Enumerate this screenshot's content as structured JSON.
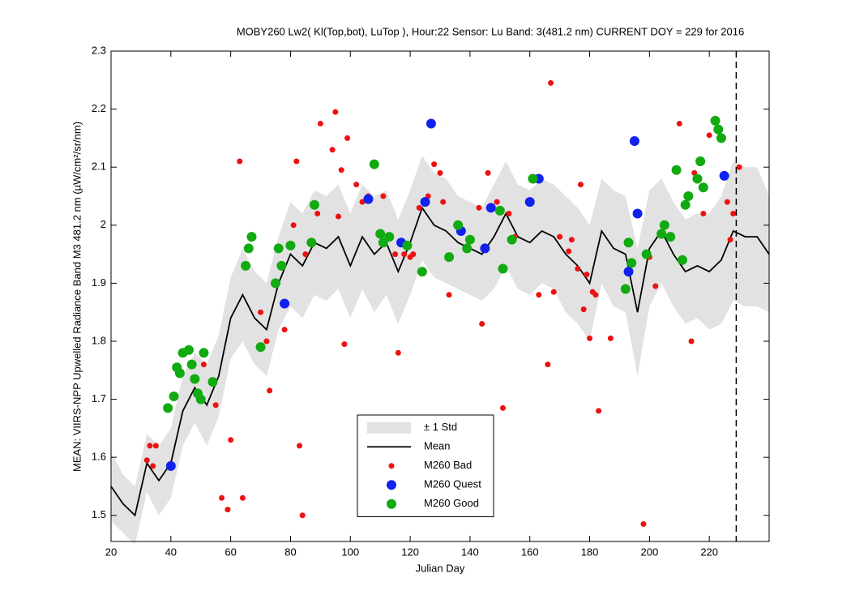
{
  "chart_data": {
    "type": "scatter",
    "title": "MOBY260   Lw2( Kl(Top,bot), LuTop ),   Hour:22 Sensor: Lu Band: 3(481.2 nm)   CURRENT DOY = 229 for 2016",
    "xlabel": "Julian Day",
    "ylabel": "MEAN: VIIRS-NPP Upwelled Radiance Band M3 481.2 nm (µW/cm²/sr/nm)",
    "xlim": [
      20,
      240
    ],
    "ylim": [
      1.455,
      2.3
    ],
    "xticks": [
      20,
      40,
      60,
      80,
      100,
      120,
      140,
      160,
      180,
      200,
      220
    ],
    "yticks": [
      1.5,
      1.6,
      1.7,
      1.8,
      1.9,
      2,
      2.1,
      2.2,
      2.3
    ],
    "vline": 229,
    "x": [
      20,
      24,
      28,
      32,
      36,
      40,
      44,
      48,
      52,
      56,
      60,
      64,
      68,
      72,
      76,
      80,
      84,
      88,
      92,
      96,
      100,
      104,
      108,
      112,
      116,
      120,
      124,
      128,
      132,
      136,
      140,
      144,
      148,
      152,
      156,
      160,
      164,
      168,
      172,
      176,
      180,
      184,
      188,
      192,
      196,
      200,
      204,
      208,
      212,
      216,
      220,
      224,
      228,
      232,
      236,
      240
    ],
    "mean": {
      "name": "Mean",
      "color": "#000000",
      "values": [
        1.55,
        1.52,
        1.5,
        1.59,
        1.56,
        1.59,
        1.68,
        1.72,
        1.69,
        1.74,
        1.84,
        1.88,
        1.84,
        1.82,
        1.9,
        1.95,
        1.93,
        1.97,
        1.96,
        1.98,
        1.93,
        1.98,
        1.95,
        1.97,
        1.92,
        1.97,
        2.03,
        2.0,
        1.99,
        1.97,
        1.96,
        1.95,
        1.98,
        2.02,
        1.98,
        1.97,
        1.99,
        1.98,
        1.95,
        1.93,
        1.9,
        1.99,
        1.96,
        1.95,
        1.85,
        1.96,
        1.99,
        1.95,
        1.92,
        1.93,
        1.92,
        1.94,
        1.99,
        1.98,
        1.98,
        1.95
      ]
    },
    "band": {
      "name": "± 1 Std",
      "color": "#e2e2e2",
      "values": [
        0.06,
        0.05,
        0.05,
        0.05,
        0.06,
        0.06,
        0.06,
        0.06,
        0.07,
        0.07,
        0.07,
        0.08,
        0.08,
        0.08,
        0.08,
        0.09,
        0.09,
        0.09,
        0.09,
        0.09,
        0.09,
        0.09,
        0.1,
        0.09,
        0.09,
        0.09,
        0.09,
        0.09,
        0.09,
        0.08,
        0.08,
        0.08,
        0.09,
        0.09,
        0.09,
        0.09,
        0.09,
        0.09,
        0.1,
        0.1,
        0.1,
        0.09,
        0.1,
        0.1,
        0.11,
        0.1,
        0.09,
        0.09,
        0.09,
        0.09,
        0.1,
        0.11,
        0.12,
        0.12,
        0.12,
        0.1
      ]
    },
    "legend": "lower center",
    "series": [
      {
        "name": "M260 Bad",
        "color": "#ee1111",
        "marker_size": 3.5,
        "x": [
          32,
          33,
          34,
          35,
          51,
          55,
          57,
          59,
          60,
          63,
          64,
          70,
          72,
          73,
          78,
          81,
          82,
          83,
          84,
          85,
          89,
          90,
          94,
          95,
          96,
          97,
          98,
          99,
          102,
          104,
          106,
          111,
          115,
          116,
          118,
          120,
          121,
          123,
          126,
          128,
          130,
          131,
          133,
          143,
          144,
          146,
          149,
          151,
          153,
          155,
          163,
          166,
          167,
          168,
          170,
          173,
          174,
          176,
          177,
          178,
          179,
          180,
          181,
          182,
          183,
          187,
          198,
          200,
          202,
          210,
          214,
          215,
          218,
          220,
          226,
          227,
          228,
          230
        ],
        "values": [
          1.595,
          1.62,
          1.585,
          1.62,
          1.76,
          1.69,
          1.53,
          1.51,
          1.63,
          2.11,
          1.53,
          1.85,
          1.8,
          1.715,
          1.82,
          2.0,
          2.11,
          1.62,
          1.5,
          1.95,
          2.02,
          2.175,
          2.13,
          2.195,
          2.015,
          2.095,
          1.795,
          2.15,
          2.07,
          2.04,
          2.05,
          2.05,
          1.95,
          1.78,
          1.95,
          1.945,
          1.95,
          2.03,
          2.05,
          2.105,
          2.09,
          2.04,
          1.88,
          2.03,
          1.83,
          2.09,
          2.04,
          1.685,
          2.02,
          1.98,
          1.88,
          1.76,
          2.245,
          1.885,
          1.98,
          1.955,
          1.975,
          1.925,
          2.07,
          1.855,
          1.915,
          1.805,
          1.885,
          1.88,
          1.68,
          1.805,
          1.485,
          1.945,
          1.895,
          2.175,
          1.8,
          2.09,
          2.02,
          2.155,
          2.04,
          1.975,
          2.02,
          2.1
        ]
      },
      {
        "name": "M260 Quest",
        "color": "#1122ee",
        "marker_size": 6,
        "x": [
          40,
          78,
          106,
          117,
          125,
          127,
          137,
          145,
          147,
          160,
          163,
          193,
          195,
          196,
          225
        ],
        "values": [
          1.585,
          1.865,
          2.045,
          1.97,
          2.04,
          2.175,
          1.99,
          1.96,
          2.03,
          2.04,
          2.08,
          1.92,
          2.145,
          2.02,
          2.085
        ]
      },
      {
        "name": "M260 Good",
        "color": "#11aa11",
        "marker_size": 6,
        "x": [
          39,
          41,
          42,
          43,
          44,
          46,
          47,
          48,
          49,
          50,
          51,
          54,
          65,
          66,
          67,
          70,
          75,
          76,
          77,
          80,
          87,
          88,
          108,
          110,
          111,
          113,
          119,
          124,
          133,
          136,
          139,
          140,
          150,
          151,
          154,
          161,
          192,
          193,
          194,
          199,
          204,
          205,
          207,
          209,
          211,
          212,
          213,
          216,
          217,
          218,
          222,
          223,
          224
        ],
        "values": [
          1.685,
          1.705,
          1.755,
          1.745,
          1.78,
          1.785,
          1.76,
          1.735,
          1.71,
          1.7,
          1.78,
          1.73,
          1.93,
          1.96,
          1.98,
          1.79,
          1.9,
          1.96,
          1.93,
          1.965,
          1.97,
          2.035,
          2.105,
          1.985,
          1.97,
          1.98,
          1.965,
          1.92,
          1.945,
          2.0,
          1.96,
          1.975,
          2.025,
          1.925,
          1.975,
          2.08,
          1.89,
          1.97,
          1.935,
          1.95,
          1.985,
          2.0,
          1.98,
          2.095,
          1.94,
          2.035,
          2.05,
          2.08,
          2.11,
          2.065,
          2.18,
          2.165,
          2.15
        ]
      }
    ]
  }
}
